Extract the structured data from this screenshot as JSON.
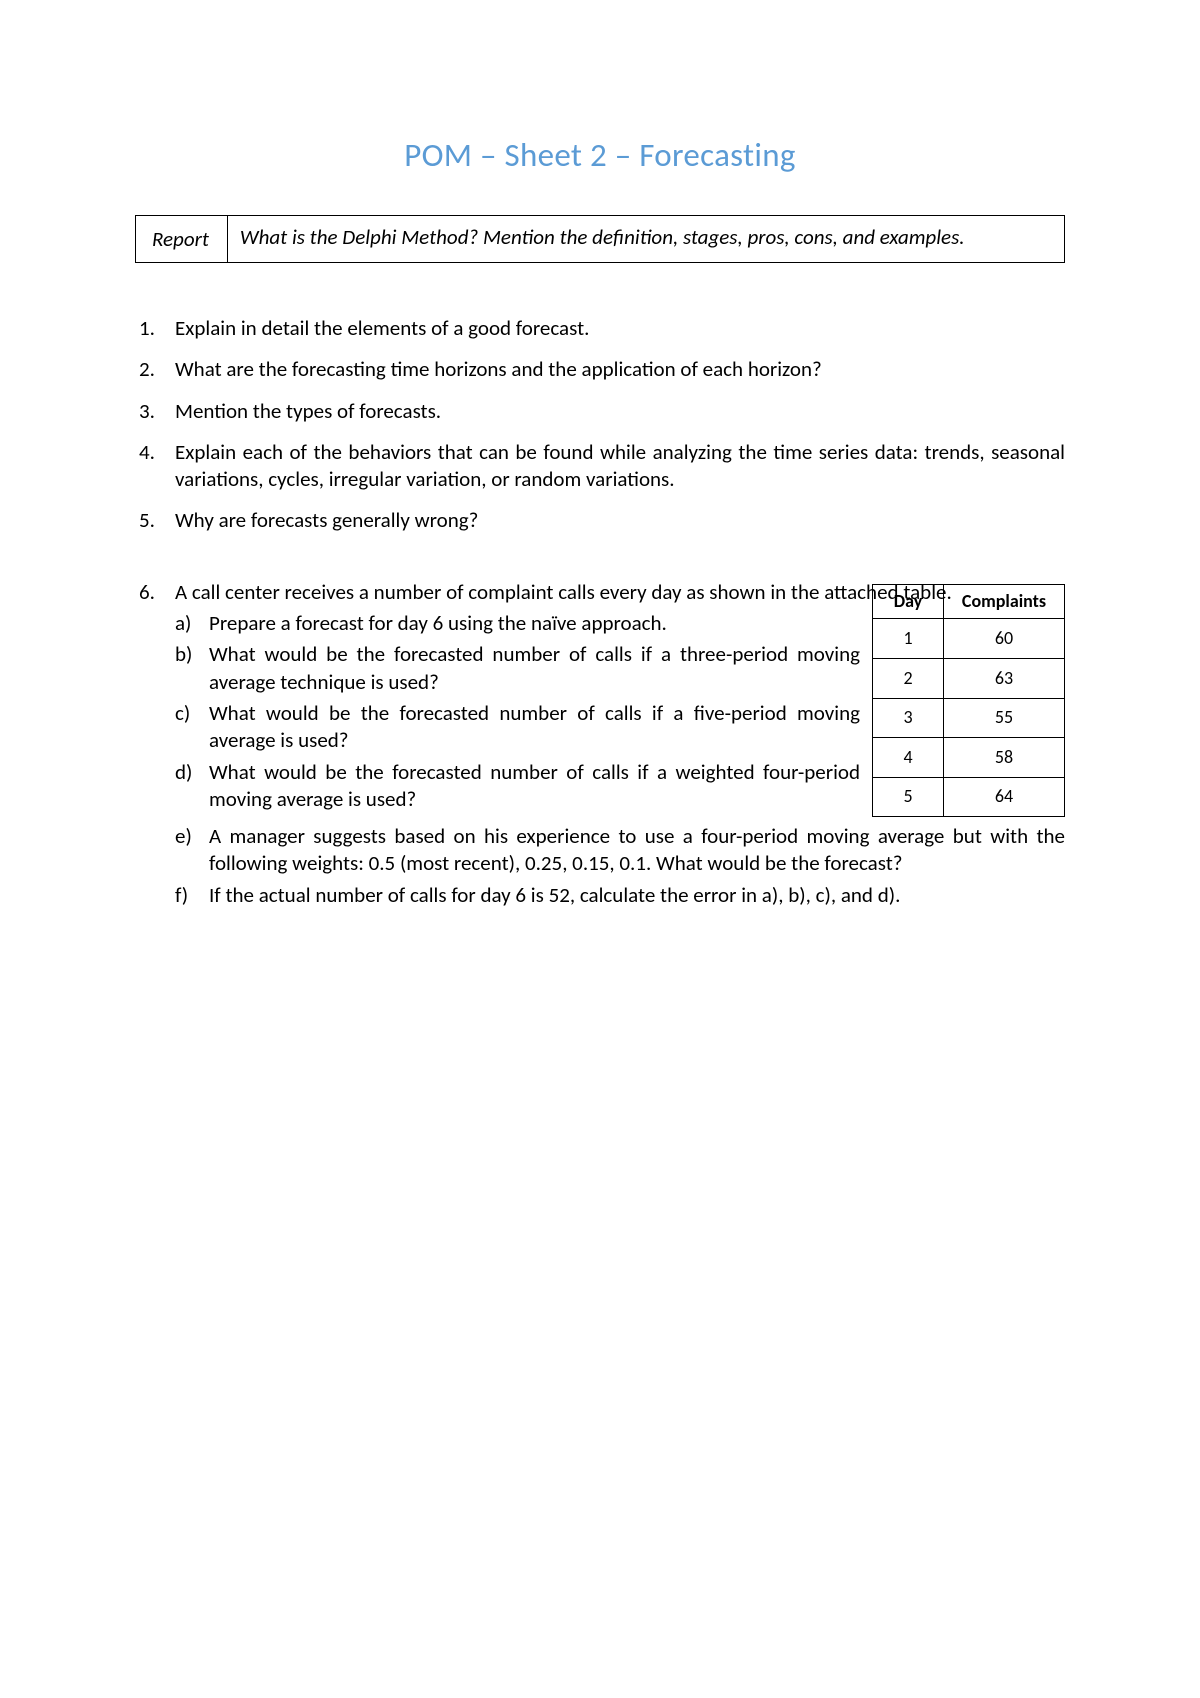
{
  "title": "POM – Sheet 2 – Forecasting",
  "report": {
    "label": "Report",
    "text": "What is the Delphi Method? Mention the definition, stages, pros, cons, and examples."
  },
  "questions": [
    "Explain in detail the elements of a good forecast.",
    "What are the forecasting time horizons and the application of each horizon?",
    "Mention the types of forecasts.",
    "Explain each of the behaviors that can be found while analyzing the time series data: trends, seasonal variations, cycles, irregular variation, or random variations.",
    "Why are forecasts generally wrong?"
  ],
  "q6": {
    "number": "6.",
    "intro": "A call center receives a number of complaint calls every day as shown in the attached table.",
    "subs_top": [
      {
        "label": "a)",
        "text": "Prepare a forecast for day 6 using the naïve approach."
      },
      {
        "label": "b)",
        "text": "What would be the forecasted number of calls if a three-period moving average technique is used?"
      },
      {
        "label": "c)",
        "text": "What would be the forecasted number of calls if a five-period moving average is used?"
      },
      {
        "label": "d)",
        "text": "What would be the forecasted number of calls if a weighted four-period moving average is used?"
      }
    ],
    "subs_rest": [
      {
        "label": "e)",
        "text": "A manager suggests based on his experience to use a four-period moving average but with the following weights: 0.5 (most recent), 0.25, 0.15, 0.1. What would be the forecast?"
      },
      {
        "label": "f)",
        "text": "If the actual number of calls for day 6 is 52, calculate the error in a), b), c), and d)."
      }
    ],
    "table": {
      "columns": [
        "Day",
        "Complaints"
      ],
      "rows": [
        [
          "1",
          "60"
        ],
        [
          "2",
          "63"
        ],
        [
          "3",
          "55"
        ],
        [
          "4",
          "58"
        ],
        [
          "5",
          "64"
        ]
      ]
    }
  },
  "style": {
    "title_color": "#5b9bd5",
    "text_color": "#000000",
    "border_color": "#000000",
    "background_color": "#ffffff",
    "title_fontsize": 33,
    "body_fontsize": 21,
    "table_fontsize": 18
  }
}
